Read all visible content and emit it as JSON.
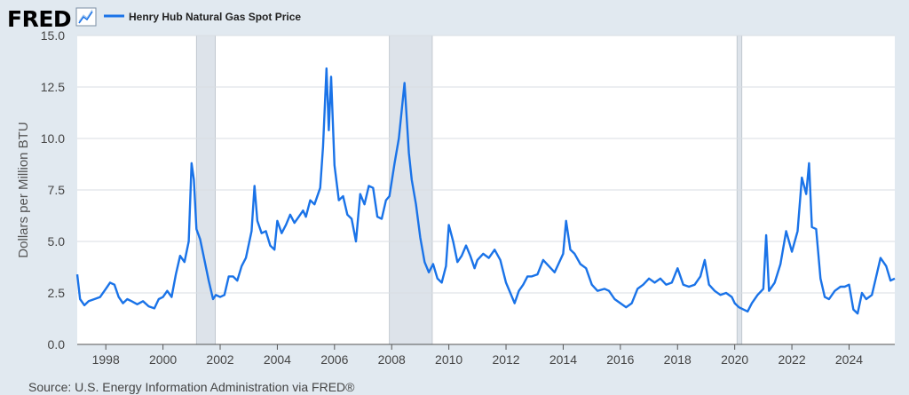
{
  "header": {
    "logo_text": "FRED",
    "logo_icon": "trend-line-icon",
    "series_title": "Henry Hub Natural Gas Spot Price"
  },
  "source": "Source: U.S. Energy Information Administration via FRED®",
  "colors": {
    "background": "#e1e9f0",
    "plot_area": "#ffffff",
    "series": "#1a73e8",
    "recession": "#dde3ea",
    "grid": "#d9dee3",
    "logo": "#000000"
  },
  "chart_data": {
    "type": "line",
    "title": "Henry Hub Natural Gas Spot Price",
    "ylabel": "Dollars per Million BTU",
    "xlabel": "",
    "xlim": [
      1997.0,
      2025.6
    ],
    "ylim": [
      0,
      15
    ],
    "y_ticks": [
      "0.0",
      "2.5",
      "5.0",
      "7.5",
      "10.0",
      "12.5",
      "15.0"
    ],
    "x_ticks": [
      "1998",
      "2000",
      "2002",
      "2004",
      "2006",
      "2008",
      "2010",
      "2012",
      "2014",
      "2016",
      "2018",
      "2020",
      "2022",
      "2024"
    ],
    "grid": true,
    "legend": "top-left",
    "recessions": [
      [
        2001.17,
        2001.83
      ],
      [
        2007.92,
        2009.42
      ],
      [
        2020.08,
        2020.25
      ]
    ],
    "series": [
      {
        "name": "Henry Hub Natural Gas Spot Price",
        "points": [
          [
            1997.0,
            3.4
          ],
          [
            1997.1,
            2.2
          ],
          [
            1997.25,
            1.9
          ],
          [
            1997.4,
            2.1
          ],
          [
            1997.6,
            2.2
          ],
          [
            1997.8,
            2.3
          ],
          [
            1998.0,
            2.7
          ],
          [
            1998.15,
            3.0
          ],
          [
            1998.3,
            2.9
          ],
          [
            1998.45,
            2.3
          ],
          [
            1998.6,
            2.0
          ],
          [
            1998.75,
            2.2
          ],
          [
            1998.9,
            2.1
          ],
          [
            1999.1,
            1.95
          ],
          [
            1999.3,
            2.1
          ],
          [
            1999.5,
            1.85
          ],
          [
            1999.7,
            1.75
          ],
          [
            1999.85,
            2.2
          ],
          [
            2000.0,
            2.3
          ],
          [
            2000.15,
            2.6
          ],
          [
            2000.3,
            2.3
          ],
          [
            2000.45,
            3.4
          ],
          [
            2000.6,
            4.3
          ],
          [
            2000.75,
            4.0
          ],
          [
            2000.9,
            5.0
          ],
          [
            2001.0,
            8.8
          ],
          [
            2001.08,
            8.0
          ],
          [
            2001.17,
            5.6
          ],
          [
            2001.3,
            5.1
          ],
          [
            2001.45,
            4.1
          ],
          [
            2001.6,
            3.1
          ],
          [
            2001.75,
            2.2
          ],
          [
            2001.85,
            2.4
          ],
          [
            2002.0,
            2.3
          ],
          [
            2002.15,
            2.4
          ],
          [
            2002.3,
            3.3
          ],
          [
            2002.45,
            3.3
          ],
          [
            2002.6,
            3.1
          ],
          [
            2002.75,
            3.8
          ],
          [
            2002.9,
            4.2
          ],
          [
            2003.1,
            5.5
          ],
          [
            2003.2,
            7.7
          ],
          [
            2003.3,
            6.0
          ],
          [
            2003.45,
            5.4
          ],
          [
            2003.6,
            5.5
          ],
          [
            2003.75,
            4.8
          ],
          [
            2003.9,
            4.6
          ],
          [
            2004.0,
            6.0
          ],
          [
            2004.15,
            5.4
          ],
          [
            2004.3,
            5.8
          ],
          [
            2004.45,
            6.3
          ],
          [
            2004.6,
            5.9
          ],
          [
            2004.75,
            6.2
          ],
          [
            2004.9,
            6.5
          ],
          [
            2005.0,
            6.2
          ],
          [
            2005.15,
            7.0
          ],
          [
            2005.3,
            6.8
          ],
          [
            2005.5,
            7.6
          ],
          [
            2005.6,
            9.6
          ],
          [
            2005.72,
            13.4
          ],
          [
            2005.8,
            10.4
          ],
          [
            2005.88,
            13.0
          ],
          [
            2006.0,
            8.7
          ],
          [
            2006.15,
            7.0
          ],
          [
            2006.3,
            7.2
          ],
          [
            2006.45,
            6.3
          ],
          [
            2006.6,
            6.1
          ],
          [
            2006.75,
            5.0
          ],
          [
            2006.9,
            7.3
          ],
          [
            2007.05,
            6.8
          ],
          [
            2007.2,
            7.7
          ],
          [
            2007.35,
            7.6
          ],
          [
            2007.5,
            6.2
          ],
          [
            2007.65,
            6.1
          ],
          [
            2007.8,
            7.0
          ],
          [
            2007.92,
            7.2
          ],
          [
            2008.1,
            8.8
          ],
          [
            2008.25,
            10.0
          ],
          [
            2008.45,
            12.7
          ],
          [
            2008.6,
            9.3
          ],
          [
            2008.7,
            8.0
          ],
          [
            2008.85,
            6.8
          ],
          [
            2009.0,
            5.2
          ],
          [
            2009.15,
            4.0
          ],
          [
            2009.3,
            3.5
          ],
          [
            2009.45,
            3.9
          ],
          [
            2009.6,
            3.2
          ],
          [
            2009.75,
            3.0
          ],
          [
            2009.9,
            3.8
          ],
          [
            2010.0,
            5.8
          ],
          [
            2010.15,
            5.0
          ],
          [
            2010.3,
            4.0
          ],
          [
            2010.45,
            4.3
          ],
          [
            2010.6,
            4.8
          ],
          [
            2010.75,
            4.3
          ],
          [
            2010.9,
            3.7
          ],
          [
            2011.0,
            4.1
          ],
          [
            2011.2,
            4.4
          ],
          [
            2011.4,
            4.2
          ],
          [
            2011.6,
            4.6
          ],
          [
            2011.8,
            4.1
          ],
          [
            2012.0,
            3.0
          ],
          [
            2012.15,
            2.5
          ],
          [
            2012.3,
            2.0
          ],
          [
            2012.45,
            2.6
          ],
          [
            2012.6,
            2.9
          ],
          [
            2012.75,
            3.3
          ],
          [
            2012.9,
            3.3
          ],
          [
            2013.1,
            3.4
          ],
          [
            2013.3,
            4.1
          ],
          [
            2013.5,
            3.8
          ],
          [
            2013.7,
            3.5
          ],
          [
            2013.9,
            4.1
          ],
          [
            2014.0,
            4.4
          ],
          [
            2014.1,
            6.0
          ],
          [
            2014.25,
            4.6
          ],
          [
            2014.4,
            4.4
          ],
          [
            2014.6,
            3.9
          ],
          [
            2014.8,
            3.7
          ],
          [
            2015.0,
            2.9
          ],
          [
            2015.2,
            2.6
          ],
          [
            2015.45,
            2.7
          ],
          [
            2015.6,
            2.6
          ],
          [
            2015.8,
            2.2
          ],
          [
            2016.0,
            2.0
          ],
          [
            2016.2,
            1.8
          ],
          [
            2016.4,
            2.0
          ],
          [
            2016.6,
            2.7
          ],
          [
            2016.8,
            2.9
          ],
          [
            2017.0,
            3.2
          ],
          [
            2017.2,
            3.0
          ],
          [
            2017.4,
            3.2
          ],
          [
            2017.6,
            2.9
          ],
          [
            2017.8,
            3.0
          ],
          [
            2018.0,
            3.7
          ],
          [
            2018.2,
            2.9
          ],
          [
            2018.4,
            2.8
          ],
          [
            2018.6,
            2.9
          ],
          [
            2018.8,
            3.3
          ],
          [
            2018.95,
            4.1
          ],
          [
            2019.1,
            2.9
          ],
          [
            2019.3,
            2.6
          ],
          [
            2019.5,
            2.4
          ],
          [
            2019.7,
            2.5
          ],
          [
            2019.9,
            2.3
          ],
          [
            2020.0,
            2.0
          ],
          [
            2020.15,
            1.8
          ],
          [
            2020.3,
            1.7
          ],
          [
            2020.45,
            1.6
          ],
          [
            2020.6,
            2.0
          ],
          [
            2020.8,
            2.4
          ],
          [
            2021.0,
            2.7
          ],
          [
            2021.1,
            5.3
          ],
          [
            2021.2,
            2.6
          ],
          [
            2021.4,
            3.0
          ],
          [
            2021.6,
            3.9
          ],
          [
            2021.8,
            5.5
          ],
          [
            2022.0,
            4.5
          ],
          [
            2022.2,
            5.5
          ],
          [
            2022.35,
            8.1
          ],
          [
            2022.5,
            7.3
          ],
          [
            2022.6,
            8.8
          ],
          [
            2022.7,
            5.7
          ],
          [
            2022.85,
            5.6
          ],
          [
            2023.0,
            3.2
          ],
          [
            2023.15,
            2.3
          ],
          [
            2023.3,
            2.2
          ],
          [
            2023.5,
            2.6
          ],
          [
            2023.7,
            2.8
          ],
          [
            2023.85,
            2.8
          ],
          [
            2024.0,
            2.9
          ],
          [
            2024.15,
            1.7
          ],
          [
            2024.3,
            1.5
          ],
          [
            2024.45,
            2.5
          ],
          [
            2024.6,
            2.2
          ],
          [
            2024.8,
            2.4
          ],
          [
            2024.95,
            3.3
          ],
          [
            2025.1,
            4.2
          ],
          [
            2025.3,
            3.8
          ],
          [
            2025.45,
            3.1
          ],
          [
            2025.6,
            3.2
          ]
        ]
      }
    ]
  }
}
